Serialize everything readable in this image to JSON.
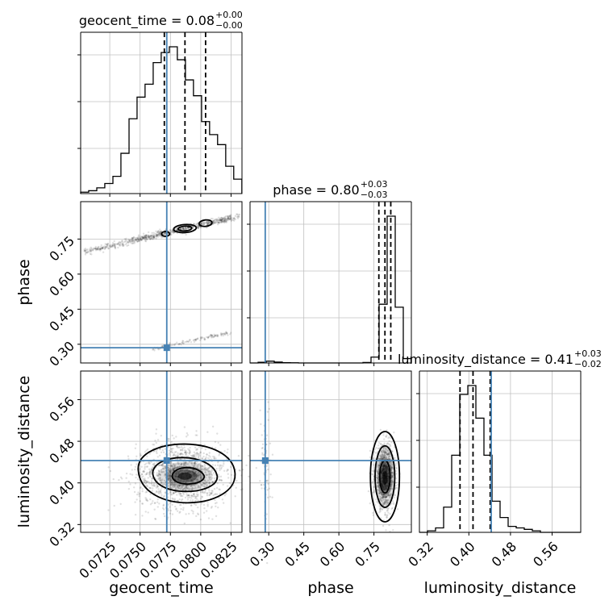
{
  "chart_data": {
    "type": "corner",
    "parameters": [
      {
        "key": "geocent_time",
        "label": "geocent_time",
        "range": [
          0.0701,
          0.0834
        ],
        "ticks": [
          0.0725,
          0.075,
          0.0775,
          0.08,
          0.0825
        ],
        "tick_labels": [
          "0.0725",
          "0.0750",
          "0.0775",
          "0.0800",
          "0.0825"
        ],
        "truth": 0.0772,
        "quantiles": [
          0.077,
          0.0787,
          0.0804
        ],
        "title": {
          "param": "geocent_time",
          "median": "0.08",
          "upper": "+0.00",
          "lower": "−0.00"
        }
      },
      {
        "key": "phase",
        "label": "phase",
        "range": [
          0.22,
          0.91
        ],
        "ticks": [
          0.3,
          0.45,
          0.6,
          0.75
        ],
        "tick_labels": [
          "0.30",
          "0.45",
          "0.60",
          "0.75"
        ],
        "truth": 0.285,
        "quantiles": [
          0.771,
          0.797,
          0.822
        ],
        "title": {
          "param": "phase",
          "median": "0.80",
          "upper": "+0.03",
          "lower": "−0.03"
        }
      },
      {
        "key": "luminosity_distance",
        "label": "luminosity_distance",
        "range": [
          0.305,
          0.615
        ],
        "ticks": [
          0.32,
          0.4,
          0.48,
          0.56
        ],
        "tick_labels": [
          "0.32",
          "0.40",
          "0.48",
          "0.56"
        ],
        "truth": 0.443,
        "quantiles": [
          0.383,
          0.408,
          0.441
        ],
        "title": {
          "param": "luminosity_distance",
          "median": "0.41",
          "upper": "+0.03",
          "lower": "−0.02"
        }
      }
    ],
    "histograms": {
      "geocent_time": {
        "bins": [
          0.0701,
          0.07076,
          0.07143,
          0.07209,
          0.07276,
          0.07342,
          0.07409,
          0.07475,
          0.07541,
          0.07608,
          0.07674,
          0.07741,
          0.07807,
          0.07874,
          0.0794,
          0.08007,
          0.08073,
          0.08139,
          0.08206,
          0.08272,
          0.08339
        ],
        "counts": [
          1,
          2,
          4,
          7,
          12,
          28,
          52,
          67,
          76,
          91,
          98,
          102,
          93,
          79,
          68,
          50,
          41,
          34,
          19,
          10
        ]
      },
      "phase": {
        "bins": [
          0.22,
          0.2545,
          0.289,
          0.3235,
          0.358,
          0.3925,
          0.427,
          0.4615,
          0.496,
          0.5305,
          0.565,
          0.5995,
          0.634,
          0.6685,
          0.703,
          0.7375,
          0.772,
          0.8065,
          0.841,
          0.8755,
          0.91
        ],
        "counts": [
          0,
          0.5,
          1.2,
          0.6,
          0.2,
          0.1,
          0,
          0,
          0,
          0,
          0,
          0,
          0,
          0,
          0.3,
          4,
          40,
          100,
          38,
          3
        ]
      },
      "luminosity_distance": {
        "bins": [
          0.305,
          0.3205,
          0.336,
          0.3515,
          0.367,
          0.3825,
          0.398,
          0.4135,
          0.429,
          0.4445,
          0.46,
          0.4755,
          0.491,
          0.5065,
          0.522,
          0.5375,
          0.553,
          0.5685,
          0.584,
          0.5995,
          0.615
        ],
        "counts": [
          0,
          1,
          3,
          17,
          52,
          93,
          99,
          77,
          52,
          21,
          10,
          4,
          3,
          2,
          1,
          0,
          0,
          0,
          0,
          0
        ]
      }
    },
    "truth_point_color": "#4682b4",
    "hist_color": "#000000",
    "grid": true
  }
}
